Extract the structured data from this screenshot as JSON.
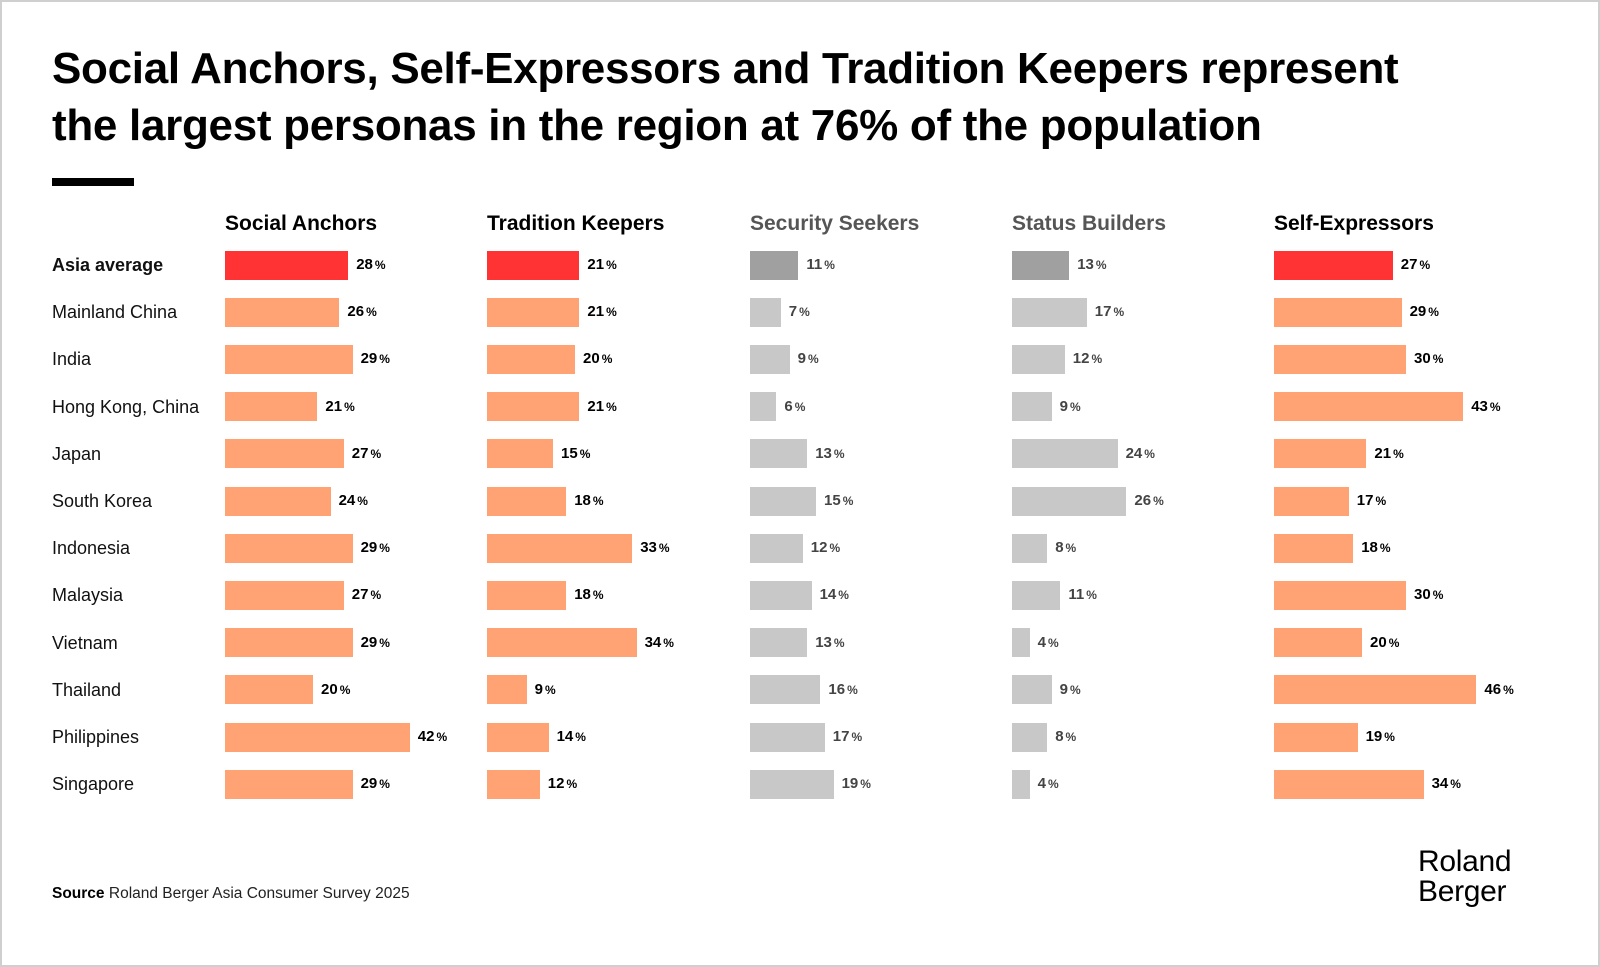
{
  "header": {
    "title_line1": "Social Anchors, Self-Expressors and Tradition Keepers represent",
    "title_line2": "the largest personas in the region at 76% of the population"
  },
  "footer": {
    "source_label": "Source",
    "source_text": "Roland Berger Asia Consumer Survey 2025",
    "logo_line1": "Roland",
    "logo_line2": "Berger"
  },
  "colors": {
    "highlight_average": "#ff3333",
    "highlight_country": "#ffa375",
    "muted_average": "#a0a0a0",
    "muted_country": "#c8c8c8",
    "header_dark": "#000000",
    "header_muted": "#555555",
    "value_dark": "#000000",
    "value_muted": "#444444"
  },
  "chart_data": {
    "type": "bar",
    "orientation": "horizontal",
    "title": "Social Anchors, Self-Expressors and Tradition Keepers represent the largest personas in the region at 76% of the population",
    "unit": "%",
    "categories": [
      "Asia average",
      "Mainland China",
      "India",
      "Hong Kong, China",
      "Japan",
      "South Korea",
      "Indonesia",
      "Malaysia",
      "Vietnam",
      "Thailand",
      "Philippines",
      "Singapore"
    ],
    "series": [
      {
        "name": "Social Anchors",
        "highlighted": true,
        "values": [
          28,
          26,
          29,
          21,
          27,
          24,
          29,
          27,
          29,
          20,
          42,
          29
        ]
      },
      {
        "name": "Tradition Keepers",
        "highlighted": true,
        "values": [
          21,
          21,
          20,
          21,
          15,
          18,
          33,
          18,
          34,
          9,
          14,
          12
        ]
      },
      {
        "name": "Security Seekers",
        "highlighted": false,
        "values": [
          11,
          7,
          9,
          6,
          13,
          15,
          12,
          14,
          13,
          16,
          17,
          19
        ]
      },
      {
        "name": "Status Builders",
        "highlighted": false,
        "values": [
          13,
          17,
          12,
          9,
          24,
          26,
          8,
          11,
          4,
          9,
          8,
          4
        ]
      },
      {
        "name": "Self-Expressors",
        "highlighted": true,
        "values": [
          27,
          29,
          30,
          43,
          21,
          17,
          18,
          30,
          20,
          46,
          19,
          34
        ]
      }
    ],
    "xlim": [
      0,
      50
    ],
    "grid": false,
    "legend": "none"
  }
}
